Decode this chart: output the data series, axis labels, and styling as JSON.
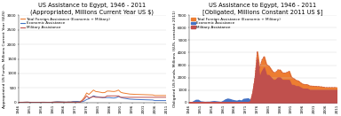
{
  "years": [
    1946,
    1947,
    1948,
    1949,
    1950,
    1951,
    1952,
    1953,
    1954,
    1955,
    1956,
    1957,
    1958,
    1959,
    1960,
    1961,
    1962,
    1963,
    1964,
    1965,
    1966,
    1967,
    1968,
    1969,
    1970,
    1971,
    1972,
    1973,
    1974,
    1975,
    1976,
    1977,
    1978,
    1979,
    1980,
    1981,
    1982,
    1983,
    1984,
    1985,
    1986,
    1987,
    1988,
    1989,
    1990,
    1991,
    1992,
    1993,
    1994,
    1995,
    1996,
    1997,
    1998,
    1999,
    2000,
    2001,
    2002,
    2003,
    2004,
    2005,
    2006,
    2007,
    2008,
    2009,
    2010,
    2011
  ],
  "left_economic": [
    0,
    0,
    5,
    8,
    10,
    5,
    4,
    3,
    3,
    3,
    5,
    6,
    5,
    4,
    3,
    8,
    15,
    20,
    18,
    15,
    13,
    10,
    15,
    13,
    25,
    28,
    30,
    20,
    25,
    50,
    100,
    125,
    175,
    225,
    200,
    190,
    175,
    160,
    165,
    165,
    165,
    155,
    150,
    165,
    200,
    175,
    150,
    138,
    125,
    112,
    108,
    103,
    100,
    98,
    95,
    93,
    90,
    88,
    85,
    83,
    63,
    63,
    63,
    63,
    63,
    63
  ],
  "left_military": [
    0,
    0,
    0,
    0,
    0,
    0,
    0,
    0,
    0,
    0,
    0,
    0,
    0,
    0,
    0,
    0,
    0,
    0,
    0,
    0,
    0,
    0,
    0,
    0,
    0,
    0,
    0,
    0,
    50,
    125,
    225,
    150,
    175,
    200,
    175,
    175,
    175,
    175,
    175,
    225,
    225,
    225,
    225,
    225,
    225,
    175,
    175,
    175,
    175,
    175,
    175,
    175,
    175,
    175,
    175,
    175,
    175,
    175,
    175,
    175,
    175,
    175,
    175,
    175,
    175,
    175
  ],
  "right_economic": [
    0,
    0,
    0,
    0,
    0,
    0,
    0,
    0,
    0,
    0,
    0,
    0,
    0,
    0,
    0,
    0,
    0,
    0,
    0,
    0,
    0,
    0,
    0,
    0,
    0,
    0,
    0,
    0,
    0,
    0,
    600,
    700,
    900,
    900,
    850,
    750,
    680,
    620,
    610,
    620,
    620,
    590,
    570,
    610,
    720,
    620,
    530,
    480,
    440,
    390,
    370,
    350,
    340,
    330,
    320,
    310,
    300,
    280,
    260,
    240,
    200,
    200,
    200,
    200,
    200,
    200
  ],
  "right_military_early": [
    0,
    0,
    0,
    0,
    0,
    0,
    0,
    0,
    0,
    0,
    0,
    0,
    0,
    0,
    0,
    0,
    0,
    0,
    0,
    0,
    0,
    0,
    0,
    0,
    0,
    0,
    0,
    0,
    0,
    0,
    0,
    0,
    0,
    0,
    0,
    0,
    0,
    0,
    0,
    0,
    0,
    0,
    0,
    0,
    0,
    0,
    0,
    0,
    0,
    0,
    0,
    0,
    0,
    0,
    0,
    0,
    0,
    0,
    0,
    0,
    0,
    0,
    0,
    0,
    0,
    0
  ],
  "right_economic_early": [
    0,
    0,
    100,
    200,
    200,
    80,
    60,
    40,
    50,
    50,
    80,
    100,
    80,
    60,
    40,
    120,
    240,
    300,
    260,
    200,
    160,
    130,
    190,
    140,
    280,
    300,
    320,
    180,
    200,
    350,
    0,
    0,
    0,
    0,
    0,
    0,
    0,
    0,
    0,
    0,
    0,
    0,
    0,
    0,
    0,
    0,
    0,
    0,
    0,
    0,
    0,
    0,
    0,
    0,
    0,
    0,
    0,
    0,
    0,
    0,
    0,
    0,
    0,
    0,
    0,
    0
  ],
  "right_military": [
    0,
    0,
    0,
    0,
    0,
    0,
    0,
    0,
    0,
    0,
    0,
    0,
    0,
    0,
    0,
    0,
    0,
    0,
    0,
    0,
    0,
    0,
    0,
    0,
    0,
    0,
    0,
    100,
    800,
    2000,
    3500,
    2000,
    2500,
    2800,
    2200,
    2200,
    2000,
    1800,
    1800,
    2000,
    2000,
    1800,
    1800,
    1800,
    1800,
    1400,
    1400,
    1300,
    1300,
    1200,
    1100,
    1100,
    1100,
    1000,
    1000,
    1000,
    1000,
    1000,
    1000,
    1000,
    1000,
    1000,
    1000,
    1000,
    1000,
    1000
  ],
  "color_economic": "#4472C4",
  "color_military": "#C0504D",
  "color_total": "#ED7D31",
  "color_total_line": "#ED7D31",
  "background": "#FFFFFF",
  "title_left": "US Assistance to Egypt, 1946 - 2011\n(Appropriated, Millions Current Year US $)",
  "title_right": "US Assistance to Egypt, 1946 - 2011\n[Obligated, Millions Constant 2011 US $]",
  "ylabel_left": "Appropriated US Funds, Millions Current Year ($US)",
  "ylabel_right": "Obligated US Funds, Millions ($US, constant 2011)",
  "legend_total": "Total Foreign Assistance (Economic + Military)",
  "legend_economic": "Economic Assistance",
  "legend_military": "Military Assistance",
  "ylim_left": [
    0,
    3000
  ],
  "ylim_right": [
    0,
    7000
  ],
  "yticks_left": [
    0,
    500,
    1000,
    1500,
    2000,
    2500,
    3000
  ],
  "yticks_right": [
    0,
    1000,
    2000,
    3000,
    4000,
    5000,
    6000,
    7000
  ],
  "xtick_years": [
    1946,
    1951,
    1956,
    1961,
    1966,
    1971,
    1976,
    1981,
    1986,
    1991,
    1996,
    2001,
    2006,
    2011
  ],
  "title_fontsize": 4.8,
  "label_fontsize": 3.2,
  "tick_fontsize": 3.0,
  "legend_fontsize": 3.0
}
